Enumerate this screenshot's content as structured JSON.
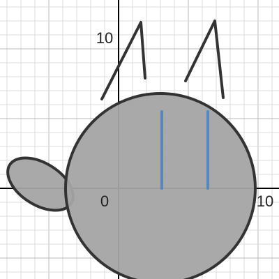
{
  "chart_data": {
    "type": "scatter",
    "xlim": [
      -8.5,
      11.5
    ],
    "ylim": [
      -6.5,
      13.5
    ],
    "grid": true,
    "grid_step": 1,
    "axis_labels": [
      {
        "x": -1,
        "y": -1,
        "text": "0"
      },
      {
        "x": 10.5,
        "y": -1,
        "text": "10"
      },
      {
        "x": -1,
        "y": 10.7,
        "text": "10"
      }
    ],
    "colors": {
      "fill": "#a4a4a4",
      "stroke": "#333333",
      "accent": "#5b86b8",
      "grid_minor": "#dcdcdc",
      "axis": "#000000"
    },
    "shapes": {
      "head": {
        "kind": "circle",
        "center": [
          3,
          0
        ],
        "radius": 6.8
      },
      "tail": {
        "kind": "ellipse",
        "center": [
          -5.6,
          0.3
        ],
        "rx": 2.6,
        "ry": 1.5,
        "rotation_deg": 32
      },
      "left_ear": [
        [
          -1.2,
          6.4
        ],
        [
          1.6,
          11.9
        ],
        [
          1.9,
          7.9
        ]
      ],
      "right_ear": [
        [
          4.8,
          7.7
        ],
        [
          6.9,
          12.0
        ],
        [
          7.5,
          6.5
        ]
      ],
      "left_eye": [
        [
          3.1,
          5.5
        ],
        [
          3.1,
          0
        ]
      ],
      "right_eye": [
        [
          6.4,
          5.5
        ],
        [
          6.4,
          0
        ]
      ]
    }
  }
}
